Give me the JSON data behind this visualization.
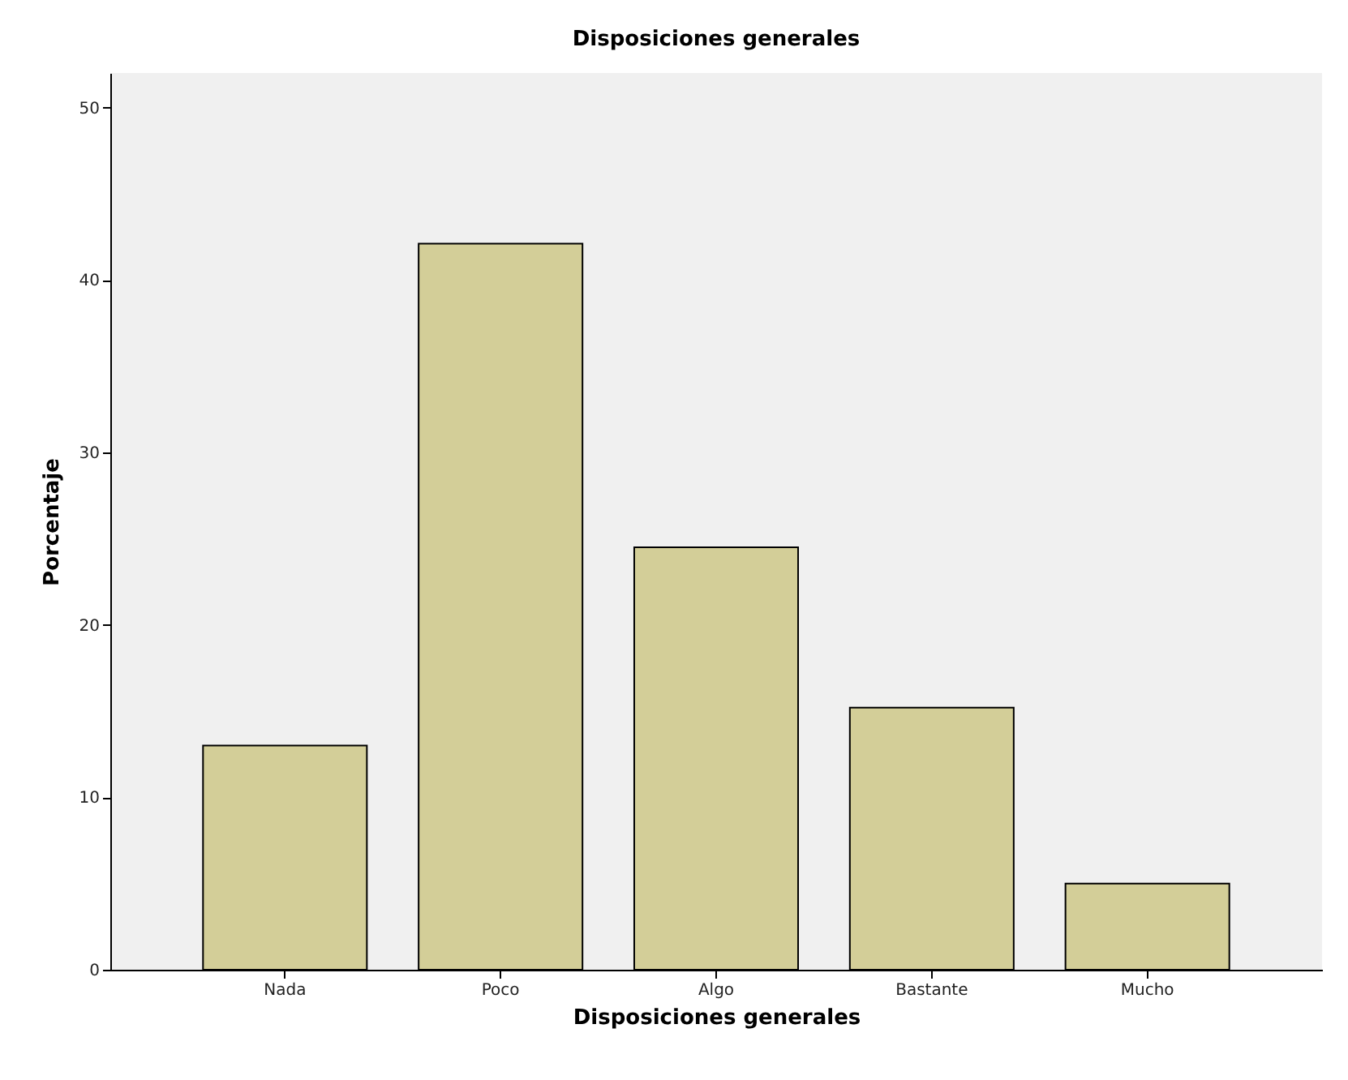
{
  "chart_data": {
    "type": "bar",
    "title": "Disposiciones generales",
    "xlabel": "Disposiciones generales",
    "ylabel": "Porcentaje",
    "categories": [
      "Nada",
      "Poco",
      "Algo",
      "Bastante",
      "Mucho"
    ],
    "values": [
      13.0,
      42.1,
      24.5,
      15.2,
      5.0
    ],
    "color": "#d3ce98",
    "ylim": [
      0,
      52
    ],
    "yticks": [
      0,
      10,
      20,
      30,
      40,
      50
    ],
    "grid": false
  }
}
